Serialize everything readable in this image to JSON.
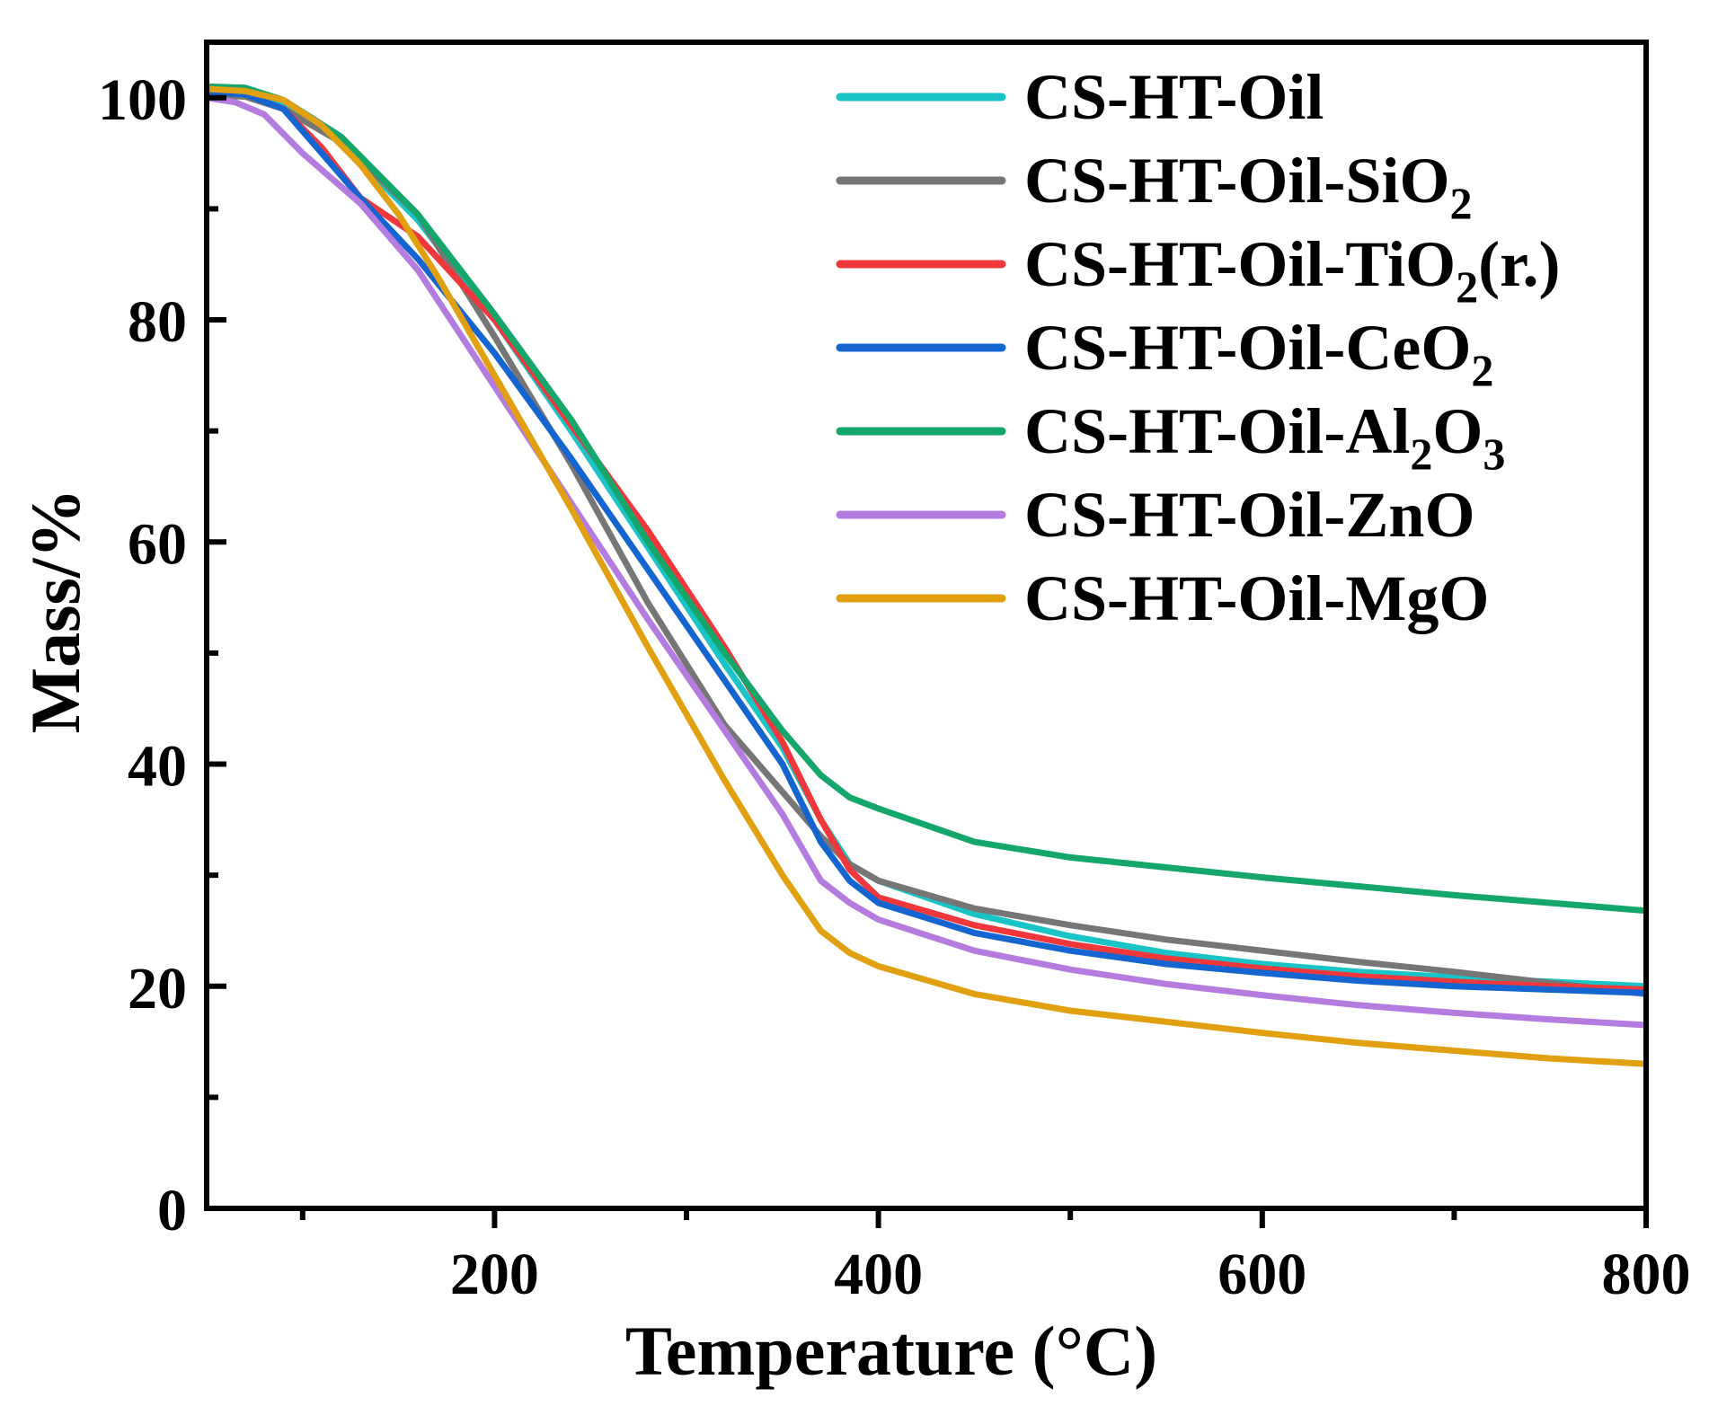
{
  "chart_data": {
    "type": "line",
    "title": "",
    "xlabel": "Temperature (°C)",
    "ylabel": "Mass/%",
    "xlim": [
      50,
      800
    ],
    "ylim": [
      0,
      105
    ],
    "x_ticks": [
      200,
      400,
      600,
      800
    ],
    "x_tick_labels": [
      "200",
      "400",
      "600",
      "800"
    ],
    "x_minor_ticks": [
      100,
      300,
      500,
      700
    ],
    "y_ticks": [
      0,
      20,
      40,
      60,
      80,
      100
    ],
    "y_tick_labels": [
      "0",
      "20",
      "40",
      "60",
      "80",
      "100"
    ],
    "y_minor_ticks": [
      10,
      30,
      50,
      70,
      90
    ],
    "grid": false,
    "legend_position": "top-right",
    "series": [
      {
        "name": "CS-HT-Oil",
        "label_parts": [
          {
            "t": "CS-HT-Oil"
          }
        ],
        "color": "#19C3C6",
        "points": [
          [
            50,
            100.5
          ],
          [
            70,
            100.4
          ],
          [
            90,
            99.2
          ],
          [
            120,
            96
          ],
          [
            160,
            89
          ],
          [
            200,
            80
          ],
          [
            240,
            70
          ],
          [
            280,
            59.5
          ],
          [
            320,
            49
          ],
          [
            350,
            41.5
          ],
          [
            370,
            35
          ],
          [
            385,
            31
          ],
          [
            400,
            29.5
          ],
          [
            450,
            26.5
          ],
          [
            500,
            24.5
          ],
          [
            550,
            23
          ],
          [
            600,
            22
          ],
          [
            650,
            21.3
          ],
          [
            700,
            20.8
          ],
          [
            750,
            20.4
          ],
          [
            800,
            20
          ]
        ]
      },
      {
        "name": "CS-HT-Oil-SiO2",
        "label_parts": [
          {
            "t": "CS-HT-Oil-SiO"
          },
          {
            "t": "2",
            "sub": true
          }
        ],
        "color": "#767676",
        "points": [
          [
            50,
            100.3
          ],
          [
            70,
            100.1
          ],
          [
            90,
            99
          ],
          [
            120,
            96
          ],
          [
            160,
            89.5
          ],
          [
            200,
            78.5
          ],
          [
            240,
            67
          ],
          [
            280,
            54.5
          ],
          [
            320,
            43.5
          ],
          [
            350,
            37.5
          ],
          [
            370,
            33.5
          ],
          [
            385,
            31
          ],
          [
            400,
            29.5
          ],
          [
            450,
            27
          ],
          [
            500,
            25.5
          ],
          [
            550,
            24.2
          ],
          [
            600,
            23.2
          ],
          [
            650,
            22.2
          ],
          [
            700,
            21.3
          ],
          [
            750,
            20.3
          ],
          [
            800,
            19.3
          ]
        ]
      },
      {
        "name": "CS-HT-Oil-TiO2(r.)",
        "label_parts": [
          {
            "t": "CS-HT-Oil-TiO"
          },
          {
            "t": "2",
            "sub": true
          },
          {
            "t": "(r.)"
          }
        ],
        "color": "#F0383C",
        "points": [
          [
            50,
            100.5
          ],
          [
            70,
            100.3
          ],
          [
            90,
            99
          ],
          [
            110,
            95.5
          ],
          [
            130,
            91
          ],
          [
            160,
            87.5
          ],
          [
            200,
            80
          ],
          [
            240,
            70.5
          ],
          [
            280,
            61
          ],
          [
            320,
            50.5
          ],
          [
            350,
            42
          ],
          [
            370,
            35
          ],
          [
            385,
            30.5
          ],
          [
            400,
            28
          ],
          [
            450,
            25.5
          ],
          [
            500,
            23.8
          ],
          [
            550,
            22.5
          ],
          [
            600,
            21.6
          ],
          [
            650,
            20.9
          ],
          [
            700,
            20.4
          ],
          [
            750,
            20
          ],
          [
            800,
            19.7
          ]
        ]
      },
      {
        "name": "CS-HT-Oil-CeO2",
        "label_parts": [
          {
            "t": "CS-HT-Oil-CeO"
          },
          {
            "t": "2",
            "sub": true
          }
        ],
        "color": "#1565D0",
        "points": [
          [
            50,
            100.5
          ],
          [
            70,
            100.3
          ],
          [
            90,
            99
          ],
          [
            110,
            95
          ],
          [
            130,
            91
          ],
          [
            160,
            85.5
          ],
          [
            200,
            77
          ],
          [
            240,
            67.5
          ],
          [
            280,
            57.5
          ],
          [
            320,
            47.5
          ],
          [
            350,
            40
          ],
          [
            370,
            33
          ],
          [
            385,
            29.5
          ],
          [
            400,
            27.5
          ],
          [
            450,
            24.8
          ],
          [
            500,
            23.2
          ],
          [
            550,
            22
          ],
          [
            600,
            21.2
          ],
          [
            650,
            20.5
          ],
          [
            700,
            20
          ],
          [
            750,
            19.7
          ],
          [
            800,
            19.4
          ]
        ]
      },
      {
        "name": "CS-HT-Oil-Al2O3",
        "label_parts": [
          {
            "t": "CS-HT-Oil-Al"
          },
          {
            "t": "2",
            "sub": true
          },
          {
            "t": "O"
          },
          {
            "t": "3",
            "sub": true
          }
        ],
        "color": "#14A66A",
        "points": [
          [
            50,
            101
          ],
          [
            70,
            100.9
          ],
          [
            90,
            99.8
          ],
          [
            120,
            96.5
          ],
          [
            160,
            89.5
          ],
          [
            200,
            80.5
          ],
          [
            240,
            71
          ],
          [
            280,
            60
          ],
          [
            320,
            50
          ],
          [
            350,
            43
          ],
          [
            370,
            39
          ],
          [
            385,
            37
          ],
          [
            400,
            36
          ],
          [
            450,
            33
          ],
          [
            500,
            31.6
          ],
          [
            550,
            30.7
          ],
          [
            600,
            29.8
          ],
          [
            650,
            29
          ],
          [
            700,
            28.2
          ],
          [
            750,
            27.5
          ],
          [
            800,
            26.8
          ]
        ]
      },
      {
        "name": "CS-HT-Oil-ZnO",
        "label_parts": [
          {
            "t": "CS-HT-Oil-ZnO"
          }
        ],
        "color": "#B57CE0",
        "points": [
          [
            50,
            100
          ],
          [
            65,
            99.6
          ],
          [
            80,
            98.5
          ],
          [
            100,
            95
          ],
          [
            130,
            90.5
          ],
          [
            160,
            84.5
          ],
          [
            200,
            74
          ],
          [
            240,
            63.5
          ],
          [
            280,
            53
          ],
          [
            320,
            43
          ],
          [
            350,
            35.5
          ],
          [
            370,
            29.5
          ],
          [
            385,
            27.5
          ],
          [
            400,
            26
          ],
          [
            450,
            23.2
          ],
          [
            500,
            21.5
          ],
          [
            550,
            20.2
          ],
          [
            600,
            19.2
          ],
          [
            650,
            18.3
          ],
          [
            700,
            17.6
          ],
          [
            750,
            17
          ],
          [
            800,
            16.5
          ]
        ]
      },
      {
        "name": "CS-HT-Oil-MgO",
        "label_parts": [
          {
            "t": "CS-HT-Oil-MgO"
          }
        ],
        "color": "#E0A010",
        "points": [
          [
            50,
            100.8
          ],
          [
            70,
            100.6
          ],
          [
            90,
            99.8
          ],
          [
            110,
            97.5
          ],
          [
            130,
            94
          ],
          [
            150,
            89.5
          ],
          [
            170,
            84
          ],
          [
            200,
            75
          ],
          [
            240,
            63
          ],
          [
            280,
            50.5
          ],
          [
            320,
            38.5
          ],
          [
            350,
            30
          ],
          [
            370,
            25
          ],
          [
            385,
            23
          ],
          [
            400,
            21.8
          ],
          [
            450,
            19.3
          ],
          [
            500,
            17.8
          ],
          [
            550,
            16.8
          ],
          [
            600,
            15.8
          ],
          [
            650,
            14.9
          ],
          [
            700,
            14.2
          ],
          [
            750,
            13.5
          ],
          [
            800,
            13
          ]
        ]
      }
    ]
  }
}
